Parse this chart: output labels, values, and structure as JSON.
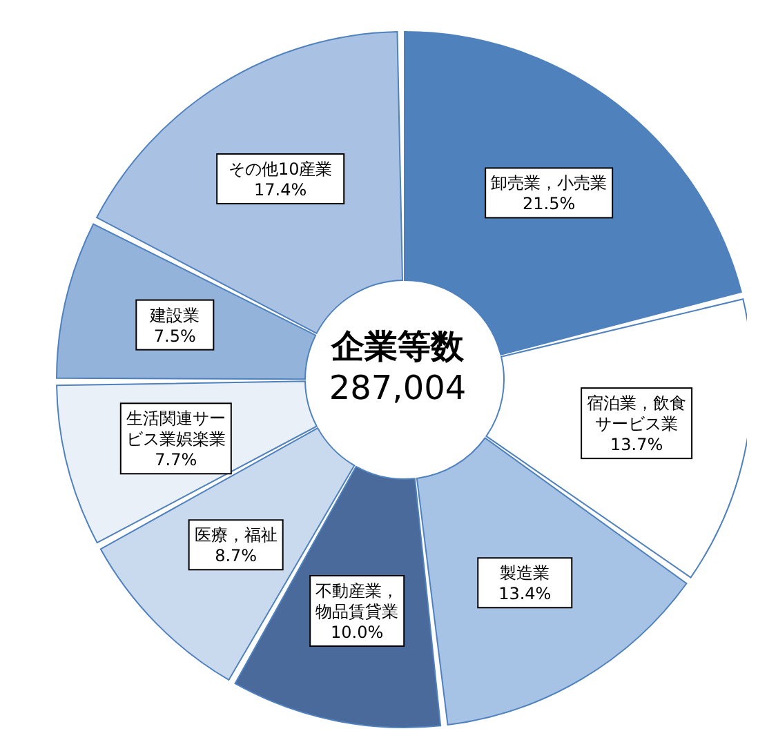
{
  "chart_data": {
    "type": "donut",
    "title": "企業等数",
    "subtitle": "287,004",
    "categories": [
      "卸売業，小売業",
      "宿泊業，飲食サービス業",
      "製造業",
      "不動産業，物品賃貸業",
      "医療，福祉",
      "生活関連サービス業娯楽業",
      "建設業",
      "その他10産業"
    ],
    "values": [
      21.5,
      13.7,
      13.4,
      10.0,
      8.7,
      7.7,
      7.5,
      17.4
    ],
    "value_labels": [
      "21.5%",
      "13.7%",
      "13.4%",
      "10.0%",
      "8.7%",
      "7.7%",
      "7.5%",
      "17.4%"
    ],
    "colors": [
      "#4f81bd",
      "#ffffff",
      "#a6c3e6",
      "#4a6a9c",
      "#c9daef",
      "#eaf0f8",
      "#93b3da",
      "#a9c2e3"
    ]
  }
}
